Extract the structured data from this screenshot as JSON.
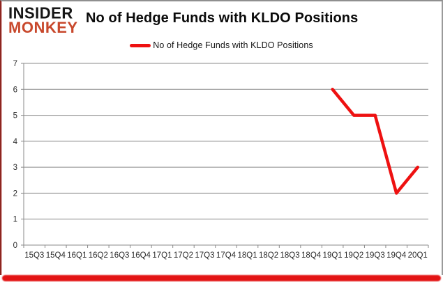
{
  "logo": {
    "line1": "INSIDER",
    "line2": "MONKEY"
  },
  "header": {
    "title": "No of Hedge Funds with KLDO Positions"
  },
  "legend": {
    "label": "No of Hedge Funds with KLDO Positions"
  },
  "colors": {
    "line": "#ee1111",
    "grid": "#8a8a8a",
    "axis": "#8a8a8a",
    "tick_label": "#2b2b2b",
    "title": "#0a0a0a",
    "logo_black": "#161616",
    "logo_red": "#c8482c",
    "bottom_bar": "#e31414"
  },
  "chart_data": {
    "type": "line",
    "title": "No of Hedge Funds with KLDO Positions",
    "categories": [
      "15Q3",
      "15Q4",
      "16Q1",
      "16Q2",
      "16Q3",
      "16Q4",
      "17Q1",
      "17Q2",
      "17Q3",
      "17Q4",
      "18Q1",
      "18Q2",
      "18Q3",
      "18Q4",
      "19Q1",
      "19Q2",
      "19Q3",
      "19Q4",
      "20Q1"
    ],
    "series": [
      {
        "name": "No of Hedge Funds with KLDO Positions",
        "values": [
          null,
          null,
          null,
          null,
          null,
          null,
          null,
          null,
          null,
          null,
          null,
          null,
          null,
          null,
          6,
          5,
          5,
          2,
          3
        ]
      }
    ],
    "ylim": [
      0,
      7
    ],
    "yticks": [
      0,
      1,
      2,
      3,
      4,
      5,
      6,
      7
    ],
    "grid": true,
    "legend_position": "top-center"
  }
}
